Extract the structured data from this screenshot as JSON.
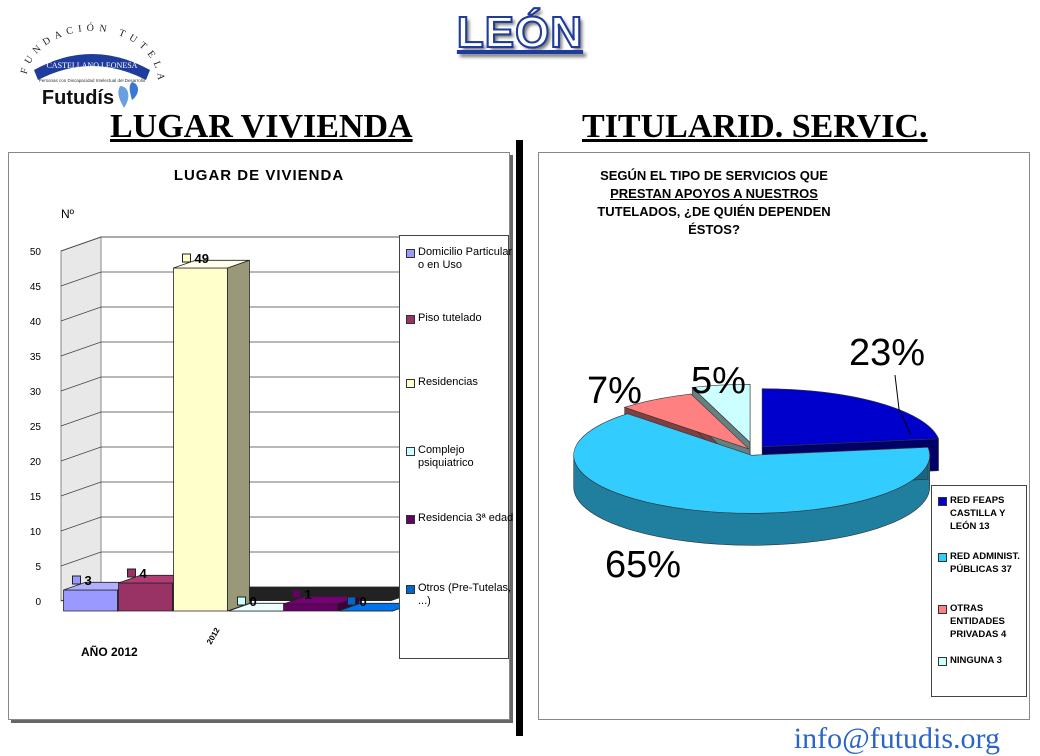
{
  "header": {
    "title": "LEÓN",
    "logo_text_arc": "FUNDACIÓN TUTELAR",
    "logo_text_band": "CASTELLANO LEONESA",
    "logo_text_sub": "Personas con Discapacidad Intelectual del Desarrollo",
    "logo_brand": "Futudís"
  },
  "left": {
    "section_title": "LUGAR VIVIENDA",
    "chart_title": "LUGAR DE VIVIENDA",
    "ylabel": "Nº",
    "year_label": "AÑO 2012",
    "axis_category": "2012"
  },
  "right": {
    "section_title": "TITULARID. SERVIC.",
    "chart_title_lines": [
      "SEGÚN EL TIPO DE SERVICIOS QUE",
      "PRESTAN APOYOS A NUESTROS",
      "TUTELADOS, ¿DE QUIÉN DEPENDEN",
      "ÉSTOS?"
    ]
  },
  "footer": {
    "email": "info@futudis.org"
  },
  "chart_data": [
    {
      "type": "bar",
      "title": "LUGAR DE VIVIENDA",
      "ylabel": "Nº",
      "xlabel": "AÑO 2012",
      "categories": [
        "2012"
      ],
      "ylim": [
        0,
        50
      ],
      "yticks": [
        0,
        5,
        10,
        15,
        20,
        25,
        30,
        35,
        40,
        45,
        50
      ],
      "grid": true,
      "legend": "right",
      "series": [
        {
          "name": "Domicilio Particular o en Uso",
          "value": 3,
          "color": "#9999ff"
        },
        {
          "name": "Piso tutelado",
          "value": 4,
          "color": "#993366"
        },
        {
          "name": "Residencias",
          "value": 49,
          "color": "#ffffcc"
        },
        {
          "name": "Complejo psiquiatrico",
          "value": 0,
          "color": "#ccffff"
        },
        {
          "name": "Residencia 3ª edad",
          "value": 1,
          "color": "#660066"
        },
        {
          "name": "Otros (Pre-Tutelas, ...)",
          "value": 0,
          "color": "#0066cc"
        }
      ]
    },
    {
      "type": "pie",
      "title": "SEGÚN EL TIPO DE SERVICIOS QUE PRESTAN APOYOS A NUESTROS TUTELADOS, ¿DE QUIÉN DEPENDEN ÉSTOS?",
      "legend": "right",
      "slices": [
        {
          "name": "RED FEAPS CASTILLA Y LEÓN 13",
          "value": 13,
          "percent": "23%",
          "color": "#0000cc"
        },
        {
          "name": "RED ADMINIST. PÚBLICAS 37",
          "value": 37,
          "percent": "65%",
          "color": "#33ccff"
        },
        {
          "name": "OTRAS ENTIDADES PRIVADAS 4",
          "value": 4,
          "percent": "7%",
          "color": "#ff8080"
        },
        {
          "name": "NINGUNA 3",
          "value": 3,
          "percent": "5%",
          "color": "#ccffff"
        }
      ]
    }
  ]
}
